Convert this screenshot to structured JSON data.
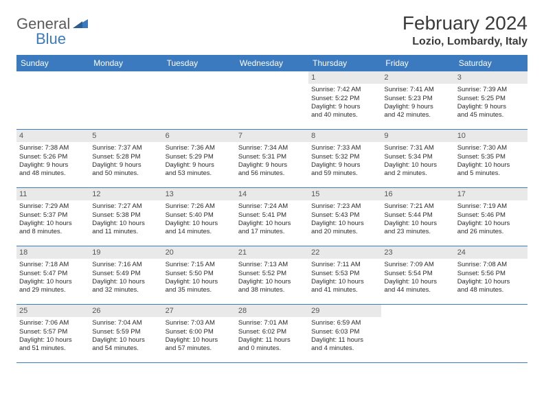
{
  "logo": {
    "text1": "General",
    "text2": "Blue"
  },
  "title": "February 2024",
  "location": "Lozio, Lombardy, Italy",
  "colors": {
    "header_bg": "#3b7abf",
    "header_text": "#ffffff",
    "daynum_bg": "#e9e9e9",
    "row_border": "#3b7abf",
    "body_text": "#2a2a2a",
    "title_text": "#3a3a3a"
  },
  "day_headers": [
    "Sunday",
    "Monday",
    "Tuesday",
    "Wednesday",
    "Thursday",
    "Friday",
    "Saturday"
  ],
  "weeks": [
    [
      {
        "empty": true
      },
      {
        "empty": true
      },
      {
        "empty": true
      },
      {
        "empty": true
      },
      {
        "day": "1",
        "sunrise": "Sunrise: 7:42 AM",
        "sunset": "Sunset: 5:22 PM",
        "daylight1": "Daylight: 9 hours",
        "daylight2": "and 40 minutes."
      },
      {
        "day": "2",
        "sunrise": "Sunrise: 7:41 AM",
        "sunset": "Sunset: 5:23 PM",
        "daylight1": "Daylight: 9 hours",
        "daylight2": "and 42 minutes."
      },
      {
        "day": "3",
        "sunrise": "Sunrise: 7:39 AM",
        "sunset": "Sunset: 5:25 PM",
        "daylight1": "Daylight: 9 hours",
        "daylight2": "and 45 minutes."
      }
    ],
    [
      {
        "day": "4",
        "sunrise": "Sunrise: 7:38 AM",
        "sunset": "Sunset: 5:26 PM",
        "daylight1": "Daylight: 9 hours",
        "daylight2": "and 48 minutes."
      },
      {
        "day": "5",
        "sunrise": "Sunrise: 7:37 AM",
        "sunset": "Sunset: 5:28 PM",
        "daylight1": "Daylight: 9 hours",
        "daylight2": "and 50 minutes."
      },
      {
        "day": "6",
        "sunrise": "Sunrise: 7:36 AM",
        "sunset": "Sunset: 5:29 PM",
        "daylight1": "Daylight: 9 hours",
        "daylight2": "and 53 minutes."
      },
      {
        "day": "7",
        "sunrise": "Sunrise: 7:34 AM",
        "sunset": "Sunset: 5:31 PM",
        "daylight1": "Daylight: 9 hours",
        "daylight2": "and 56 minutes."
      },
      {
        "day": "8",
        "sunrise": "Sunrise: 7:33 AM",
        "sunset": "Sunset: 5:32 PM",
        "daylight1": "Daylight: 9 hours",
        "daylight2": "and 59 minutes."
      },
      {
        "day": "9",
        "sunrise": "Sunrise: 7:31 AM",
        "sunset": "Sunset: 5:34 PM",
        "daylight1": "Daylight: 10 hours",
        "daylight2": "and 2 minutes."
      },
      {
        "day": "10",
        "sunrise": "Sunrise: 7:30 AM",
        "sunset": "Sunset: 5:35 PM",
        "daylight1": "Daylight: 10 hours",
        "daylight2": "and 5 minutes."
      }
    ],
    [
      {
        "day": "11",
        "sunrise": "Sunrise: 7:29 AM",
        "sunset": "Sunset: 5:37 PM",
        "daylight1": "Daylight: 10 hours",
        "daylight2": "and 8 minutes."
      },
      {
        "day": "12",
        "sunrise": "Sunrise: 7:27 AM",
        "sunset": "Sunset: 5:38 PM",
        "daylight1": "Daylight: 10 hours",
        "daylight2": "and 11 minutes."
      },
      {
        "day": "13",
        "sunrise": "Sunrise: 7:26 AM",
        "sunset": "Sunset: 5:40 PM",
        "daylight1": "Daylight: 10 hours",
        "daylight2": "and 14 minutes."
      },
      {
        "day": "14",
        "sunrise": "Sunrise: 7:24 AM",
        "sunset": "Sunset: 5:41 PM",
        "daylight1": "Daylight: 10 hours",
        "daylight2": "and 17 minutes."
      },
      {
        "day": "15",
        "sunrise": "Sunrise: 7:23 AM",
        "sunset": "Sunset: 5:43 PM",
        "daylight1": "Daylight: 10 hours",
        "daylight2": "and 20 minutes."
      },
      {
        "day": "16",
        "sunrise": "Sunrise: 7:21 AM",
        "sunset": "Sunset: 5:44 PM",
        "daylight1": "Daylight: 10 hours",
        "daylight2": "and 23 minutes."
      },
      {
        "day": "17",
        "sunrise": "Sunrise: 7:19 AM",
        "sunset": "Sunset: 5:46 PM",
        "daylight1": "Daylight: 10 hours",
        "daylight2": "and 26 minutes."
      }
    ],
    [
      {
        "day": "18",
        "sunrise": "Sunrise: 7:18 AM",
        "sunset": "Sunset: 5:47 PM",
        "daylight1": "Daylight: 10 hours",
        "daylight2": "and 29 minutes."
      },
      {
        "day": "19",
        "sunrise": "Sunrise: 7:16 AM",
        "sunset": "Sunset: 5:49 PM",
        "daylight1": "Daylight: 10 hours",
        "daylight2": "and 32 minutes."
      },
      {
        "day": "20",
        "sunrise": "Sunrise: 7:15 AM",
        "sunset": "Sunset: 5:50 PM",
        "daylight1": "Daylight: 10 hours",
        "daylight2": "and 35 minutes."
      },
      {
        "day": "21",
        "sunrise": "Sunrise: 7:13 AM",
        "sunset": "Sunset: 5:52 PM",
        "daylight1": "Daylight: 10 hours",
        "daylight2": "and 38 minutes."
      },
      {
        "day": "22",
        "sunrise": "Sunrise: 7:11 AM",
        "sunset": "Sunset: 5:53 PM",
        "daylight1": "Daylight: 10 hours",
        "daylight2": "and 41 minutes."
      },
      {
        "day": "23",
        "sunrise": "Sunrise: 7:09 AM",
        "sunset": "Sunset: 5:54 PM",
        "daylight1": "Daylight: 10 hours",
        "daylight2": "and 44 minutes."
      },
      {
        "day": "24",
        "sunrise": "Sunrise: 7:08 AM",
        "sunset": "Sunset: 5:56 PM",
        "daylight1": "Daylight: 10 hours",
        "daylight2": "and 48 minutes."
      }
    ],
    [
      {
        "day": "25",
        "sunrise": "Sunrise: 7:06 AM",
        "sunset": "Sunset: 5:57 PM",
        "daylight1": "Daylight: 10 hours",
        "daylight2": "and 51 minutes."
      },
      {
        "day": "26",
        "sunrise": "Sunrise: 7:04 AM",
        "sunset": "Sunset: 5:59 PM",
        "daylight1": "Daylight: 10 hours",
        "daylight2": "and 54 minutes."
      },
      {
        "day": "27",
        "sunrise": "Sunrise: 7:03 AM",
        "sunset": "Sunset: 6:00 PM",
        "daylight1": "Daylight: 10 hours",
        "daylight2": "and 57 minutes."
      },
      {
        "day": "28",
        "sunrise": "Sunrise: 7:01 AM",
        "sunset": "Sunset: 6:02 PM",
        "daylight1": "Daylight: 11 hours",
        "daylight2": "and 0 minutes."
      },
      {
        "day": "29",
        "sunrise": "Sunrise: 6:59 AM",
        "sunset": "Sunset: 6:03 PM",
        "daylight1": "Daylight: 11 hours",
        "daylight2": "and 4 minutes."
      },
      {
        "empty": true
      },
      {
        "empty": true
      }
    ]
  ]
}
